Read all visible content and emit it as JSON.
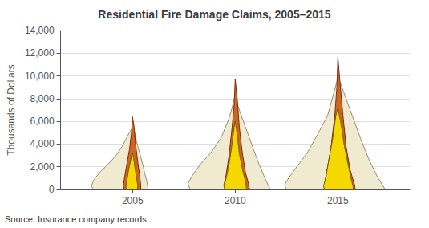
{
  "chart_data": {
    "type": "polygon",
    "title": "Residential Fire Damage Claims, 2005–2015",
    "ylabel": "Thousands of Dollars",
    "annotation": "Source: Insurance company records.",
    "xlim": [
      2001.5,
      2018.5
    ],
    "xticks": [
      2005,
      2010,
      2015
    ],
    "ylim": [
      0,
      14000
    ],
    "yticks": [
      0,
      {
        "value": 2000,
        "label": "2,000"
      },
      {
        "value": 4000,
        "label": "4,000"
      },
      {
        "value": 6000,
        "label": "6,000"
      },
      {
        "value": 8000,
        "label": "8,000"
      },
      {
        "value": 10000,
        "label": "10,000"
      },
      {
        "value": 12000,
        "label": "12,000"
      },
      {
        "value": 14000,
        "label": "14,000"
      }
    ],
    "grid": "y",
    "series": [
      {
        "color": "#f0ead0",
        "edge_color": "#9b8b6b",
        "x": [
          2003.1,
          2003,
          2003.1,
          2003.4,
          2003.8,
          2004.2,
          2004.5,
          2004.7,
          2004.85,
          2004.95,
          2005,
          2005.1,
          2005.2,
          2005.35,
          2005.5,
          2005.6,
          2005.7,
          2005.75,
          2005.75
        ],
        "values": [
          0,
          300,
          800,
          1500,
          2200,
          3000,
          3800,
          4500,
          5000,
          5300,
          5400,
          5000,
          4200,
          3200,
          2200,
          1400,
          700,
          200,
          0
        ]
      },
      {
        "color": "#cc6622",
        "edge_color": "#7a3010",
        "x": [
          2004.6,
          2004.55,
          2004.6,
          2004.7,
          2004.85,
          2004.95,
          2005,
          2005.08,
          2005.15,
          2005.25,
          2005.35,
          2005.4,
          2005.4
        ],
        "values": [
          0,
          300,
          900,
          2000,
          3500,
          5000,
          6400,
          5500,
          4000,
          2500,
          1200,
          400,
          0
        ]
      },
      {
        "color": "#f5d800",
        "edge_color": "#706000",
        "x": [
          2004.7,
          2004.68,
          2004.72,
          2004.8,
          2004.9,
          2004.98,
          2005,
          2005.06,
          2005.12,
          2005.2,
          2005.25,
          2005.25
        ],
        "values": [
          0,
          200,
          700,
          1600,
          2500,
          3100,
          3200,
          2700,
          1900,
          1000,
          400,
          0
        ]
      },
      {
        "color": "#f0ead0",
        "edge_color": "#9b8b6b",
        "x": [
          2007.8,
          2007.7,
          2007.9,
          2008.3,
          2008.8,
          2009.3,
          2009.65,
          2009.85,
          2009.95,
          2010,
          2010.2,
          2010.5,
          2010.8,
          2011.1,
          2011.4,
          2011.6,
          2011.7
        ],
        "values": [
          0,
          500,
          1200,
          2200,
          3200,
          4500,
          6000,
          7200,
          8000,
          8200,
          7000,
          5500,
          4000,
          2500,
          1200,
          400,
          0
        ]
      },
      {
        "color": "#cc6622",
        "edge_color": "#7a3010",
        "x": [
          2009.5,
          2009.45,
          2009.55,
          2009.7,
          2009.85,
          2009.95,
          2010,
          2010.1,
          2010.2,
          2010.35,
          2010.5,
          2010.65,
          2010.7
        ],
        "values": [
          0,
          400,
          1200,
          3000,
          5500,
          7500,
          9700,
          8000,
          5500,
          3200,
          1500,
          500,
          0
        ]
      },
      {
        "color": "#f5d800",
        "edge_color": "#706000",
        "x": [
          2009.5,
          2009.45,
          2009.55,
          2009.7,
          2009.85,
          2009.95,
          2010,
          2010.1,
          2010.2,
          2010.35,
          2010.5,
          2010.55,
          2010.55
        ],
        "values": [
          0,
          300,
          900,
          2200,
          4000,
          5500,
          6000,
          4800,
          3200,
          1800,
          700,
          100,
          0
        ]
      },
      {
        "color": "#f0ead0",
        "edge_color": "#9b8b6b",
        "x": [
          2012.5,
          2012.4,
          2012.6,
          2013,
          2013.5,
          2014,
          2014.5,
          2014.8,
          2014.95,
          2015,
          2015.3,
          2015.7,
          2016.1,
          2016.5,
          2016.9,
          2017.2,
          2017.3
        ],
        "values": [
          0,
          400,
          1000,
          2000,
          3200,
          4800,
          6500,
          8500,
          9500,
          10000,
          8500,
          6500,
          4500,
          2700,
          1200,
          300,
          0
        ]
      },
      {
        "color": "#cc6622",
        "edge_color": "#7a3010",
        "x": [
          2014.4,
          2014.35,
          2014.45,
          2014.65,
          2014.85,
          2014.95,
          2015,
          2015.1,
          2015.25,
          2015.4,
          2015.6,
          2015.8,
          2015.85
        ],
        "values": [
          0,
          500,
          1500,
          3500,
          6500,
          9000,
          11700,
          9500,
          6500,
          3800,
          1700,
          500,
          0
        ]
      },
      {
        "color": "#f5d800",
        "edge_color": "#706000",
        "x": [
          2014.35,
          2014.3,
          2014.4,
          2014.55,
          2014.75,
          2014.9,
          2015,
          2015.15,
          2015.3,
          2015.5,
          2015.65,
          2015.75,
          2015.75
        ],
        "values": [
          0,
          300,
          900,
          2500,
          4500,
          6500,
          7200,
          5800,
          4000,
          2200,
          900,
          200,
          0
        ]
      }
    ]
  }
}
